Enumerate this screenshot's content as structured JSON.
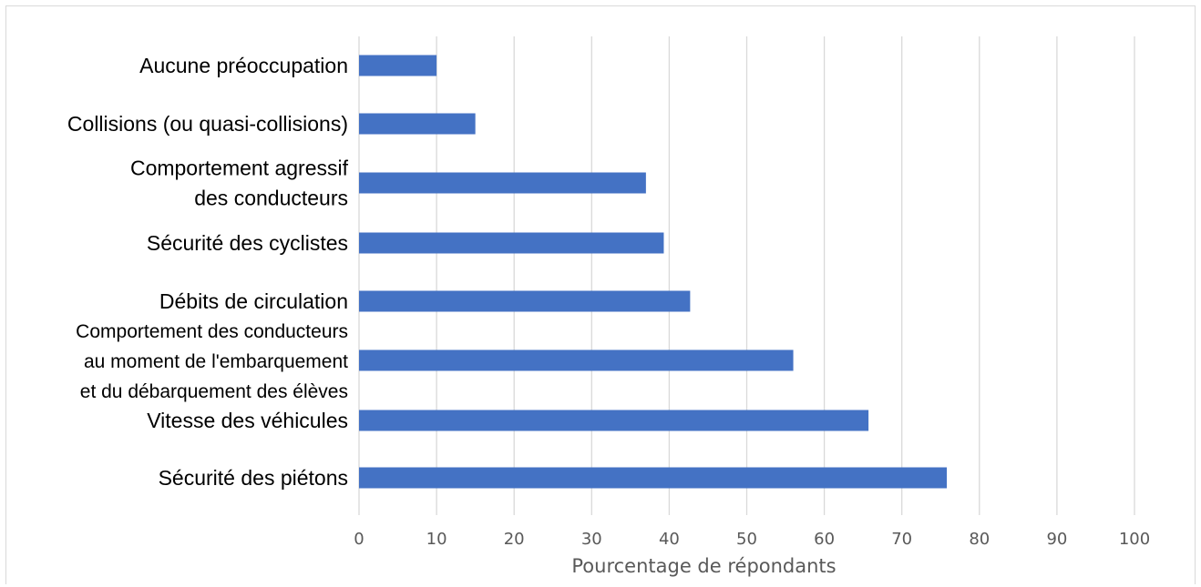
{
  "chart_data": {
    "type": "bar",
    "orientation": "horizontal",
    "categories": [
      [
        "Aucune préoccupation"
      ],
      [
        "Collisions (ou quasi-collisions)"
      ],
      [
        "Comportement agressif",
        "des conducteurs"
      ],
      [
        "Sécurité des cyclistes"
      ],
      [
        "Débits de circulation"
      ],
      [
        "Comportement des conducteurs",
        "au moment de l'embarquement",
        "et du débarquement des élèves"
      ],
      [
        "Vitesse des véhicules"
      ],
      [
        "Sécurité des piétons"
      ]
    ],
    "values": [
      10,
      15,
      37,
      39.3,
      42.7,
      56,
      65.7,
      75.8
    ],
    "xlabel": "Pourcentage de répondants",
    "xlim": [
      0,
      100
    ],
    "xticks": [
      0,
      10,
      20,
      30,
      40,
      50,
      60,
      70,
      80,
      90,
      100
    ],
    "grid": true,
    "legend": false,
    "colors": {
      "bar": "#4472c4",
      "grid": "#d9d9d9",
      "tick_text": "#595959",
      "label_text": "#000000"
    }
  }
}
